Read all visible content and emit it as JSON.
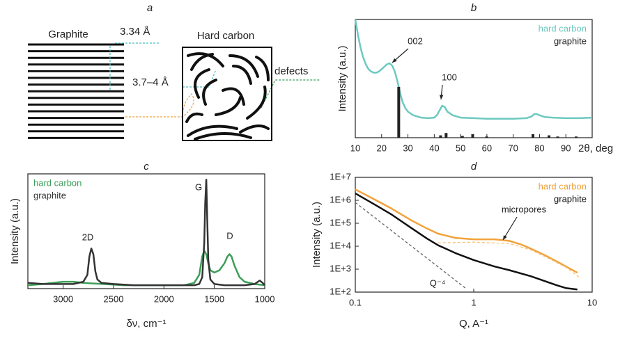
{
  "diagram": {
    "panel": "a",
    "graphite": "Graphite",
    "spacing_graphite": "3.34 Å",
    "hard_carbon": "Hard carbon",
    "spacing_hard_carbon": "3.7–4 Å",
    "defects": "defects"
  },
  "chart_data": [
    {
      "type": "line",
      "title": "b",
      "ylabel": "Intensity (a.u.)",
      "xlabel": "2θ, deg",
      "xlim": [
        10,
        100
      ],
      "xticks": [
        10,
        20,
        30,
        40,
        50,
        60,
        70,
        80,
        90
      ],
      "ylim": [
        0,
        1
      ],
      "legend": "upper right",
      "annotations": [
        "002",
        "100"
      ],
      "series": [
        {
          "name": "hard carbon",
          "color": "#6cc9c0",
          "mark": "line",
          "x": [
            10,
            11,
            12,
            13,
            14,
            15,
            16,
            17,
            18,
            19,
            20,
            21,
            22,
            23,
            24,
            25,
            26,
            27,
            28,
            29,
            30,
            32,
            35,
            38,
            40,
            41,
            42,
            43,
            44,
            45,
            47,
            50,
            55,
            60,
            65,
            70,
            75,
            77,
            78,
            79,
            80,
            82,
            85,
            90,
            95,
            100
          ],
          "values": [
            1.0,
            0.87,
            0.76,
            0.68,
            0.62,
            0.58,
            0.56,
            0.55,
            0.55,
            0.56,
            0.58,
            0.6,
            0.62,
            0.63,
            0.61,
            0.56,
            0.48,
            0.38,
            0.3,
            0.25,
            0.22,
            0.19,
            0.17,
            0.165,
            0.17,
            0.19,
            0.23,
            0.27,
            0.26,
            0.22,
            0.19,
            0.17,
            0.165,
            0.16,
            0.16,
            0.16,
            0.165,
            0.18,
            0.2,
            0.2,
            0.19,
            0.175,
            0.17,
            0.165,
            0.165,
            0.17
          ]
        },
        {
          "name": "graphite",
          "color": "#222222",
          "mark": "stick",
          "x": [
            26.5,
            42.4,
            44.5,
            50.7,
            54.6,
            59.9,
            77.5,
            83.6,
            86.9,
            93.9
          ],
          "values": [
            0.43,
            0.02,
            0.04,
            0.015,
            0.03,
            0.01,
            0.03,
            0.02,
            0.01,
            0.01
          ]
        }
      ]
    },
    {
      "type": "line",
      "title": "c",
      "ylabel": "Intensity (a.u.)",
      "xlabel": "δν, cm⁻¹",
      "xlim": [
        3350,
        1000
      ],
      "xticks": [
        3000,
        2500,
        2000,
        1500,
        1000
      ],
      "ylim": [
        0,
        1
      ],
      "legend": "upper left",
      "annotations": [
        "2D",
        "G",
        "D"
      ],
      "series": [
        {
          "name": "hard carbon",
          "color": "#3b9e58",
          "mark": "line",
          "x": [
            3350,
            3200,
            3000,
            2900,
            2800,
            2600,
            2400,
            2200,
            2000,
            1800,
            1700,
            1650,
            1620,
            1600,
            1580,
            1560,
            1540,
            1500,
            1450,
            1400,
            1370,
            1350,
            1330,
            1300,
            1250,
            1200,
            1100,
            1000
          ],
          "values": [
            0.03,
            0.04,
            0.06,
            0.06,
            0.05,
            0.04,
            0.03,
            0.03,
            0.03,
            0.03,
            0.05,
            0.12,
            0.28,
            0.33,
            0.3,
            0.22,
            0.16,
            0.14,
            0.16,
            0.22,
            0.28,
            0.3,
            0.28,
            0.2,
            0.1,
            0.06,
            0.04,
            0.03
          ]
        },
        {
          "name": "graphite",
          "color": "#333333",
          "mark": "line",
          "x": [
            3350,
            3200,
            3000,
            2900,
            2800,
            2760,
            2740,
            2720,
            2700,
            2680,
            2660,
            2620,
            2500,
            2300,
            2000,
            1800,
            1700,
            1650,
            1620,
            1600,
            1590,
            1580,
            1570,
            1560,
            1540,
            1500,
            1400,
            1300,
            1200,
            1100,
            1050,
            1020,
            1000
          ],
          "values": [
            0.05,
            0.04,
            0.04,
            0.04,
            0.06,
            0.12,
            0.28,
            0.35,
            0.3,
            0.15,
            0.08,
            0.05,
            0.04,
            0.03,
            0.03,
            0.03,
            0.03,
            0.04,
            0.1,
            0.4,
            0.75,
            0.95,
            0.6,
            0.25,
            0.08,
            0.04,
            0.03,
            0.03,
            0.03,
            0.04,
            0.07,
            0.05,
            0.03
          ]
        }
      ]
    },
    {
      "type": "line",
      "title": "d",
      "ylabel": "Intensity (a.u.)",
      "xlabel": "Q, A⁻¹",
      "xscale": "log",
      "yscale": "log",
      "xlim": [
        0.1,
        10
      ],
      "xticks": [
        0.1,
        1,
        10
      ],
      "ylim": [
        100,
        10000000
      ],
      "yticks": [
        {
          "value": 100,
          "label": "1E+2"
        },
        {
          "value": 1000,
          "label": "1E+3"
        },
        {
          "value": 10000,
          "label": "1E+4"
        },
        {
          "value": 100000,
          "label": "1E+5"
        },
        {
          "value": 1000000,
          "label": "1E+6"
        },
        {
          "value": 10000000,
          "label": "1E+7"
        }
      ],
      "legend": "upper right",
      "annotations": [
        "micropores",
        "Q⁻⁴"
      ],
      "series": [
        {
          "name": "hard carbon",
          "color": "#f2a23a",
          "mark": "line",
          "x": [
            0.1,
            0.15,
            0.2,
            0.3,
            0.4,
            0.5,
            0.7,
            1,
            1.5,
            2,
            2.5,
            3,
            4,
            5,
            6,
            7.5
          ],
          "values": [
            3000000,
            1000000,
            450000,
            130000,
            60000,
            35000,
            23000,
            20000,
            20000,
            17000,
            12000,
            8000,
            4000,
            2200,
            1300,
            700
          ]
        },
        {
          "name": "graphite",
          "color": "#111111",
          "mark": "line",
          "x": [
            0.1,
            0.15,
            0.2,
            0.3,
            0.4,
            0.5,
            0.7,
            1,
            1.5,
            2,
            3,
            4,
            5,
            6,
            7.5
          ],
          "values": [
            2000000,
            600000,
            250000,
            60000,
            22000,
            11000,
            5000,
            2500,
            1300,
            900,
            500,
            300,
            200,
            150,
            130
          ]
        },
        {
          "color": "#666666",
          "mark": "dashed",
          "x": [
            0.1,
            0.85
          ],
          "values": [
            800000,
            150
          ]
        },
        {
          "color": "#f5c27a",
          "mark": "dashed",
          "x": [
            0.5,
            1,
            2,
            3,
            4,
            6,
            8
          ],
          "values": [
            14000,
            15000,
            13000,
            7000,
            3500,
            1200,
            400
          ]
        }
      ]
    }
  ]
}
